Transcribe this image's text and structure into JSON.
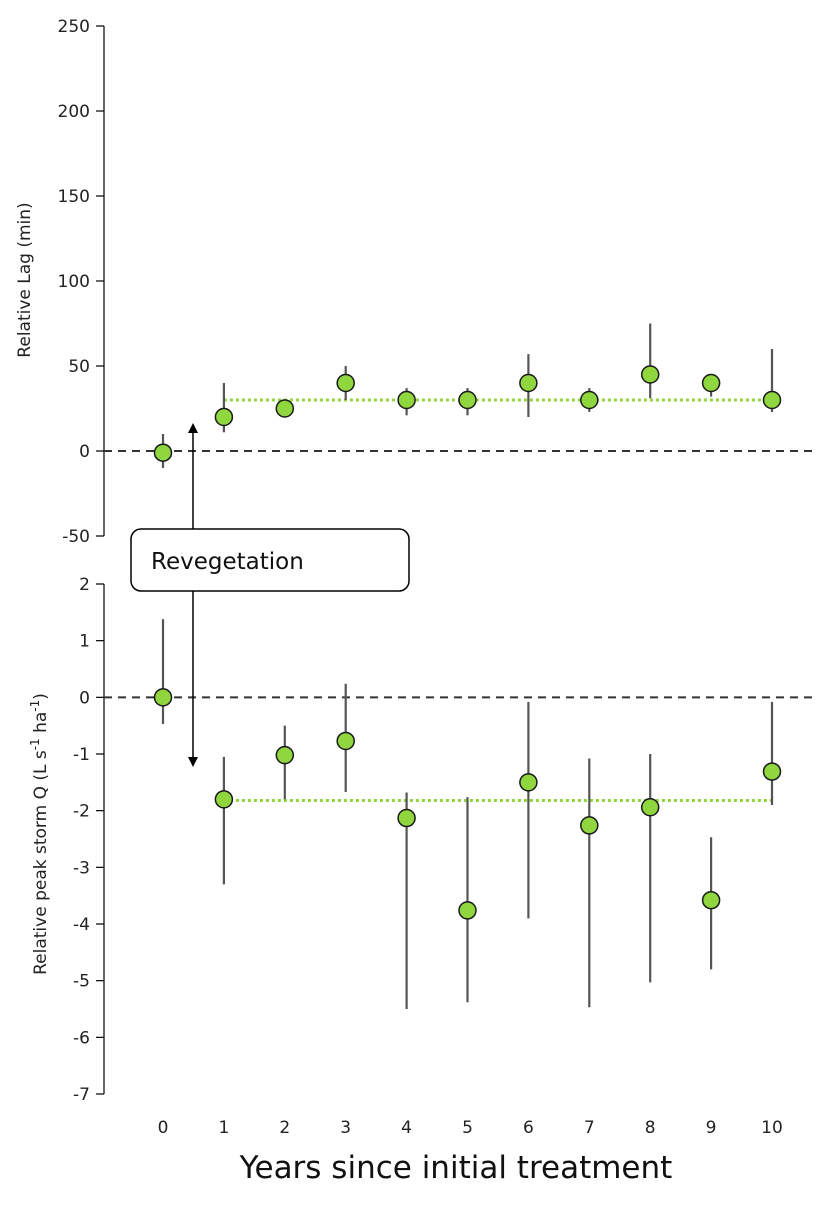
{
  "chart_data": [
    {
      "type": "scatter",
      "title": "",
      "xlabel": "",
      "ylabel": "Relative Lag (min)",
      "ylim": [
        -50,
        250
      ],
      "yticks": [
        -50,
        0,
        50,
        100,
        150,
        200,
        250
      ],
      "reference_line": 0,
      "series": [
        {
          "x": [
            0,
            1,
            2,
            3,
            4,
            5,
            6,
            7,
            8,
            9,
            10
          ],
          "values": [
            -1,
            20,
            25,
            40,
            30,
            30,
            40,
            30,
            45,
            40,
            30
          ],
          "error_low": [
            -10,
            11,
            23,
            30,
            21,
            21,
            20,
            23,
            31,
            32,
            23
          ],
          "error_high": [
            10,
            40,
            27,
            50,
            37,
            37,
            57,
            37,
            75,
            43,
            60
          ]
        }
      ],
      "mean_line": {
        "x_start": 1,
        "x_end": 10,
        "value": 30
      },
      "colors": {
        "marker": "#8fd63f",
        "mean_line": "#8fd63f"
      }
    },
    {
      "type": "scatter",
      "title": "",
      "xlabel": "Years since initial treatment",
      "ylabel": "Relative peak storm Q (L s-1 ha-1)",
      "ylim": [
        -7,
        2
      ],
      "yticks": [
        -7,
        -6,
        -5,
        -4,
        -3,
        -2,
        -1,
        0,
        1,
        2
      ],
      "xticks": [
        0,
        1,
        2,
        3,
        4,
        5,
        6,
        7,
        8,
        9,
        10
      ],
      "reference_line": 0,
      "series": [
        {
          "x": [
            0,
            1,
            2,
            3,
            4,
            5,
            6,
            7,
            8,
            9,
            10
          ],
          "values": [
            0,
            -1.8,
            -1.02,
            -0.77,
            -2.13,
            -3.76,
            -1.5,
            -2.26,
            -1.94,
            -3.58,
            -1.31
          ],
          "error_low": [
            -0.47,
            -3.3,
            -1.8,
            -1.67,
            -5.5,
            -5.38,
            -3.9,
            -5.47,
            -5.03,
            -4.8,
            -1.9
          ],
          "error_high": [
            1.38,
            -1.05,
            -0.5,
            0.24,
            -1.68,
            -1.76,
            -0.08,
            -1.08,
            -1.0,
            -2.47,
            -0.08
          ]
        }
      ],
      "mean_line": {
        "x_start": 1,
        "x_end": 10,
        "value": -1.82
      },
      "colors": {
        "marker": "#8fd63f",
        "mean_line": "#8fd63f"
      }
    }
  ],
  "annotation": {
    "label": "Revegetation"
  }
}
